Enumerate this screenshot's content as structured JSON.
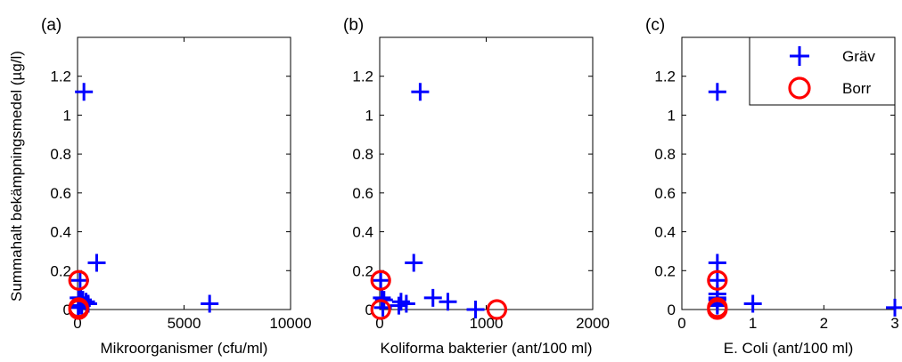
{
  "figure": {
    "ylabel": "Summahalt bekämpningsmedel (µg/l)"
  },
  "legend": {
    "entries": [
      {
        "name": "Gräv",
        "marker": "plus",
        "color": "#0000ff"
      },
      {
        "name": "Borr",
        "marker": "circle",
        "color": "#ff0000"
      }
    ],
    "placement": "top-right of panel (c)"
  },
  "chart_data": [
    {
      "type": "scatter",
      "panel_label": "(a)",
      "xlabel": "Mikroorganismer (cfu/ml)",
      "ylabel": "Summahalt bekämpningsmedel (µg/l)",
      "xlim": [
        0,
        10000
      ],
      "ylim": [
        0,
        1.4
      ],
      "xticks": [
        0,
        5000,
        10000
      ],
      "xtick_labels": [
        "0",
        "5000",
        "10000"
      ],
      "yticks": [
        0,
        0.2,
        0.4,
        0.6,
        0.8,
        1,
        1.2
      ],
      "ytick_labels": [
        "0",
        "0.2",
        "0.4",
        "0.6",
        "0.8",
        "1",
        "1.2"
      ],
      "grid": false,
      "series": [
        {
          "name": "Gräv",
          "marker": "plus",
          "color": "#0000ff",
          "x": [
            300,
            900,
            6200,
            50,
            150,
            250,
            400,
            500,
            80,
            200,
            30,
            120
          ],
          "y": [
            1.12,
            0.24,
            0.03,
            0.06,
            0.06,
            0.05,
            0.04,
            0.03,
            0.02,
            0.02,
            0.01,
            0.15
          ]
        },
        {
          "name": "Borr",
          "marker": "circle",
          "color": "#ff0000",
          "x": [
            50,
            50,
            50
          ],
          "y": [
            0.15,
            0.01,
            0.0
          ]
        }
      ]
    },
    {
      "type": "scatter",
      "panel_label": "(b)",
      "xlabel": "Koliforma bakterier (ant/100 ml)",
      "ylabel": "",
      "xlim": [
        0,
        2000
      ],
      "ylim": [
        0,
        1.4
      ],
      "xticks": [
        0,
        1000,
        2000
      ],
      "xtick_labels": [
        "0",
        "1000",
        "2000"
      ],
      "yticks": [
        0,
        0.2,
        0.4,
        0.6,
        0.8,
        1,
        1.2
      ],
      "ytick_labels": [
        "0",
        "0.2",
        "0.4",
        "0.6",
        "0.8",
        "1",
        "1.2"
      ],
      "grid": false,
      "series": [
        {
          "name": "Gräv",
          "marker": "plus",
          "color": "#0000ff",
          "x": [
            380,
            320,
            500,
            640,
            900,
            20,
            40,
            200,
            250,
            180,
            10,
            30
          ],
          "y": [
            1.12,
            0.24,
            0.06,
            0.04,
            0.0,
            0.06,
            0.05,
            0.04,
            0.03,
            0.02,
            0.15,
            0.01
          ]
        },
        {
          "name": "Borr",
          "marker": "circle",
          "color": "#ff0000",
          "x": [
            10,
            10,
            1100
          ],
          "y": [
            0.15,
            0.0,
            0.0
          ]
        }
      ]
    },
    {
      "type": "scatter",
      "panel_label": "(c)",
      "xlabel": "E. Coli (ant/100 ml)",
      "ylabel": "",
      "xlim": [
        0,
        3
      ],
      "ylim": [
        0,
        1.4
      ],
      "xticks": [
        0,
        1,
        2,
        3
      ],
      "xtick_labels": [
        "0",
        "1",
        "2",
        "3"
      ],
      "yticks": [
        0,
        0.2,
        0.4,
        0.6,
        0.8,
        1,
        1.2
      ],
      "ytick_labels": [
        "0",
        "0.2",
        "0.4",
        "0.6",
        "0.8",
        "1",
        "1.2"
      ],
      "grid": false,
      "series": [
        {
          "name": "Gräv",
          "marker": "plus",
          "color": "#0000ff",
          "x": [
            0.5,
            0.5,
            0.5,
            0.5,
            0.5,
            0.5,
            0.5,
            0.5,
            1.0,
            3.0
          ],
          "y": [
            1.12,
            0.24,
            0.15,
            0.08,
            0.06,
            0.05,
            0.03,
            0.02,
            0.03,
            0.01
          ]
        },
        {
          "name": "Borr",
          "marker": "circle",
          "color": "#ff0000",
          "x": [
            0.5,
            0.5,
            0.5
          ],
          "y": [
            0.15,
            0.01,
            0.0
          ]
        }
      ]
    }
  ]
}
